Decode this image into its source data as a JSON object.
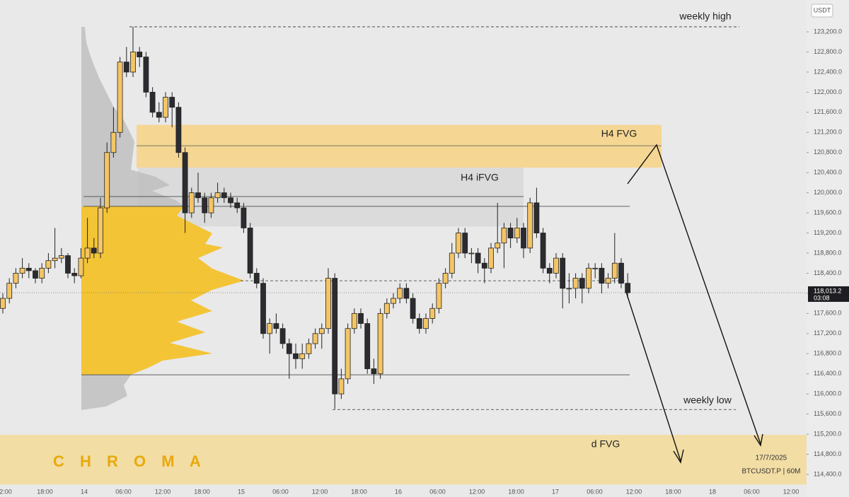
{
  "chart_data": {
    "type": "candlestick",
    "currency": "USDT",
    "symbol": "BTCUSDT.P | 60M",
    "date": "17/7/2025",
    "watermark": "C H R O M A",
    "up_color": "#f4c565",
    "down_color": "#2b2b30",
    "ylim": [
      113950,
      123833
    ],
    "yticks": [
      {
        "value": 114400,
        "label": "114,400.0"
      },
      {
        "value": 114800,
        "label": "114,800.0"
      },
      {
        "value": 115200,
        "label": "115,200.0"
      },
      {
        "value": 115600,
        "label": "115,600.0"
      },
      {
        "value": 116000,
        "label": "116,000.0"
      },
      {
        "value": 116400,
        "label": "116,400.0"
      },
      {
        "value": 116800,
        "label": "116,800.0"
      },
      {
        "value": 117200,
        "label": "117,200.0"
      },
      {
        "value": 117600,
        "label": "117,600.0"
      },
      {
        "value": 118000,
        "label": "118,000.0"
      },
      {
        "value": 118400,
        "label": "118,400.0"
      },
      {
        "value": 118800,
        "label": "118,800.0"
      },
      {
        "value": 119200,
        "label": "119,200.0"
      },
      {
        "value": 119600,
        "label": "119,600.0"
      },
      {
        "value": 120000,
        "label": "120,000.0"
      },
      {
        "value": 120400,
        "label": "120,400.0"
      },
      {
        "value": 120800,
        "label": "120,800.0"
      },
      {
        "value": 121200,
        "label": "121,200.0"
      },
      {
        "value": 121600,
        "label": "121,600.0"
      },
      {
        "value": 122000,
        "label": "122,000.0"
      },
      {
        "value": 122400,
        "label": "122,400.0"
      },
      {
        "value": 122800,
        "label": "122,800.0"
      },
      {
        "value": 123200,
        "label": "123,200.0"
      }
    ],
    "xticks": [
      "2:00",
      "18:00",
      "14",
      "06:00",
      "12:00",
      "18:00",
      "15",
      "06:00",
      "12:00",
      "18:00",
      "16",
      "06:00",
      "12:00",
      "18:00",
      "17",
      "06:00",
      "12:00",
      "18:00",
      "18",
      "06:00",
      "12:00"
    ],
    "last_price": {
      "value": 118013.2,
      "label": "118,013.2"
    },
    "countdown": "03:08",
    "zones": [
      {
        "label": "H4 FVG",
        "top": 121350,
        "bottom": 120500,
        "mid": 120935,
        "color": "#f6d48a"
      },
      {
        "label": "H4 iFVG",
        "top": 120500,
        "bottom": 119330,
        "color": "#d9d9d9"
      },
      {
        "label": "d FVG",
        "top": 115186,
        "bottom": 114200,
        "color": "#f3dc9c"
      }
    ],
    "levels": [
      {
        "label": "weekly high",
        "value": 123300,
        "style": "dashed"
      },
      {
        "label": "weekly low",
        "value": 115690,
        "style": "dashed"
      },
      {
        "value": 119925,
        "style": "solid"
      },
      {
        "value": 119730,
        "style": "solid"
      },
      {
        "value": 116380,
        "style": "solid"
      },
      {
        "value": 118250,
        "style": "dashed"
      }
    ],
    "candles": [
      [
        117700,
        118000,
        117600,
        117900
      ],
      [
        117900,
        118300,
        117800,
        118200
      ],
      [
        118200,
        118500,
        118100,
        118400
      ],
      [
        118400,
        118700,
        118300,
        118500
      ],
      [
        118500,
        118600,
        118300,
        118450
      ],
      [
        118450,
        118500,
        118200,
        118300
      ],
      [
        118300,
        118600,
        118200,
        118500
      ],
      [
        118500,
        118800,
        118400,
        118650
      ],
      [
        118650,
        119300,
        118500,
        118700
      ],
      [
        118700,
        118900,
        118600,
        118750
      ],
      [
        118750,
        118800,
        118300,
        118400
      ],
      [
        118400,
        118500,
        118200,
        118350
      ],
      [
        118350,
        118900,
        118300,
        118700
      ],
      [
        118700,
        119500,
        118600,
        118900
      ],
      [
        118900,
        119100,
        118700,
        118800
      ],
      [
        118800,
        119900,
        118700,
        119700
      ],
      [
        119700,
        121000,
        119600,
        120800
      ],
      [
        120800,
        121700,
        120700,
        121200
      ],
      [
        121200,
        122700,
        121100,
        122600
      ],
      [
        122600,
        122900,
        122300,
        122400
      ],
      [
        122400,
        123300,
        122300,
        122800
      ],
      [
        122800,
        122900,
        122500,
        122700
      ],
      [
        122700,
        122800,
        121900,
        122000
      ],
      [
        122000,
        122100,
        121500,
        121600
      ],
      [
        121600,
        121800,
        121400,
        121500
      ],
      [
        121500,
        122000,
        121400,
        121900
      ],
      [
        121900,
        122000,
        121300,
        121700
      ],
      [
        121700,
        121800,
        120700,
        120800
      ],
      [
        120800,
        120900,
        119200,
        119600
      ],
      [
        119600,
        120100,
        119500,
        120000
      ],
      [
        120000,
        120400,
        119800,
        119900
      ],
      [
        119900,
        120000,
        119400,
        119600
      ],
      [
        119600,
        120000,
        119500,
        119900
      ],
      [
        119900,
        120200,
        119800,
        120000
      ],
      [
        120000,
        120100,
        119800,
        119900
      ],
      [
        119900,
        120000,
        119700,
        119800
      ],
      [
        119800,
        119900,
        119600,
        119700
      ],
      [
        119700,
        119800,
        119200,
        119300
      ],
      [
        119300,
        119400,
        118300,
        118400
      ],
      [
        118400,
        118500,
        118100,
        118200
      ],
      [
        118200,
        118300,
        117100,
        117200
      ],
      [
        117200,
        117500,
        116800,
        117400
      ],
      [
        117400,
        117600,
        117200,
        117300
      ],
      [
        117300,
        117400,
        116900,
        117000
      ],
      [
        117000,
        117100,
        116300,
        116800
      ],
      [
        116800,
        117000,
        116500,
        116700
      ],
      [
        116700,
        117000,
        116500,
        116800
      ],
      [
        116800,
        117100,
        116700,
        117000
      ],
      [
        117000,
        117300,
        116900,
        117200
      ],
      [
        117200,
        117400,
        116900,
        117300
      ],
      [
        117300,
        118500,
        117200,
        118300
      ],
      [
        118300,
        118400,
        115700,
        116000
      ],
      [
        116000,
        116500,
        115900,
        116300
      ],
      [
        116300,
        117400,
        116200,
        117300
      ],
      [
        117300,
        117700,
        117200,
        117600
      ],
      [
        117600,
        117700,
        117300,
        117400
      ],
      [
        117400,
        117500,
        116400,
        116500
      ],
      [
        116500,
        116700,
        116200,
        116400
      ],
      [
        116400,
        117700,
        116300,
        117600
      ],
      [
        117600,
        117900,
        117500,
        117800
      ],
      [
        117800,
        118000,
        117700,
        117900
      ],
      [
        117900,
        118200,
        117800,
        118100
      ],
      [
        118100,
        118200,
        117800,
        117900
      ],
      [
        117900,
        118000,
        117400,
        117500
      ],
      [
        117500,
        117600,
        117200,
        117300
      ],
      [
        117300,
        117600,
        117200,
        117500
      ],
      [
        117500,
        117800,
        117400,
        117700
      ],
      [
        117700,
        118300,
        117600,
        118200
      ],
      [
        118200,
        118500,
        118100,
        118400
      ],
      [
        118400,
        119000,
        118300,
        118800
      ],
      [
        118800,
        119300,
        118700,
        119200
      ],
      [
        119200,
        119300,
        118700,
        118800
      ],
      [
        118800,
        118900,
        118600,
        118800
      ],
      [
        118800,
        118900,
        118400,
        118600
      ],
      [
        118600,
        118700,
        118200,
        118500
      ],
      [
        118500,
        119000,
        118400,
        118900
      ],
      [
        118900,
        119800,
        118800,
        119000
      ],
      [
        119000,
        119400,
        118500,
        119300
      ],
      [
        119300,
        119400,
        118900,
        119100
      ],
      [
        119100,
        119500,
        119000,
        119300
      ],
      [
        119300,
        119400,
        118700,
        118900
      ],
      [
        118900,
        119900,
        118800,
        119800
      ],
      [
        119800,
        120100,
        119100,
        119200
      ],
      [
        119200,
        119300,
        118400,
        118500
      ],
      [
        118500,
        118600,
        118200,
        118400
      ],
      [
        118400,
        118800,
        118300,
        118700
      ],
      [
        118700,
        118800,
        117700,
        118100
      ],
      [
        118100,
        118400,
        117800,
        118100
      ],
      [
        118100,
        118400,
        117900,
        118300
      ],
      [
        118300,
        118400,
        117800,
        118100
      ],
      [
        118100,
        118600,
        118000,
        118500
      ],
      [
        118500,
        118600,
        118300,
        118500
      ],
      [
        118500,
        118600,
        118000,
        118200
      ],
      [
        118200,
        118400,
        118100,
        118300
      ],
      [
        118300,
        119200,
        118200,
        118600
      ],
      [
        118600,
        118700,
        118100,
        118200
      ],
      [
        118200,
        118400,
        117900,
        118013.2
      ]
    ]
  }
}
